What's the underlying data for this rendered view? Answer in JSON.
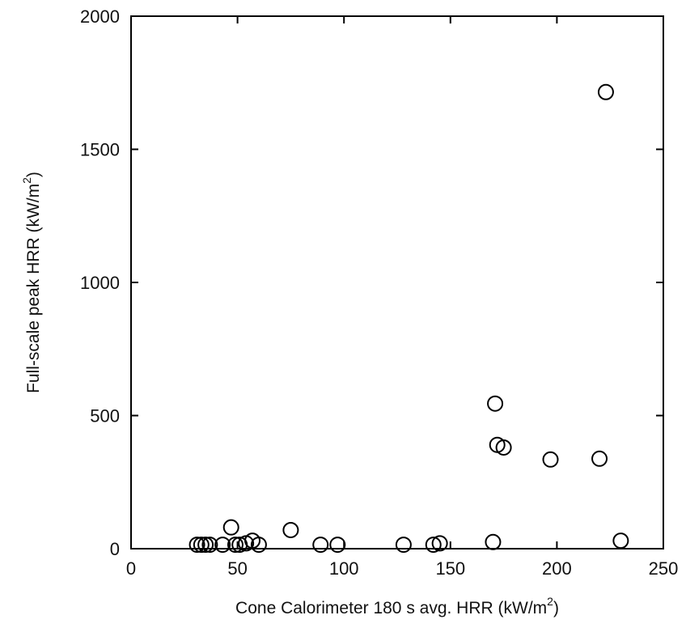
{
  "chart_data": {
    "type": "scatter",
    "xlabel": "Cone Calorimeter 180 s avg. HRR (kW/m",
    "xlabel_sup": "2",
    "xlabel_close": ")",
    "ylabel": "Full-scale peak HRR (kW/m",
    "ylabel_sup": "2",
    "ylabel_close": ")",
    "xlim": [
      0,
      250
    ],
    "ylim": [
      0,
      2000
    ],
    "xticks": [
      0,
      50,
      100,
      150,
      200,
      250
    ],
    "yticks": [
      0,
      500,
      1000,
      1500,
      2000
    ],
    "x_tick_labels": [
      "0",
      "50",
      "100",
      "150",
      "200",
      "250"
    ],
    "y_tick_labels": [
      "0",
      "500",
      "1000",
      "1500",
      "2000"
    ],
    "marker": "open-circle",
    "grid": false,
    "points": [
      {
        "x": 31,
        "y": 15
      },
      {
        "x": 33,
        "y": 15
      },
      {
        "x": 35,
        "y": 15
      },
      {
        "x": 37,
        "y": 15
      },
      {
        "x": 43,
        "y": 15
      },
      {
        "x": 47,
        "y": 80
      },
      {
        "x": 49,
        "y": 15
      },
      {
        "x": 51,
        "y": 15
      },
      {
        "x": 54,
        "y": 20
      },
      {
        "x": 57,
        "y": 30
      },
      {
        "x": 60,
        "y": 15
      },
      {
        "x": 75,
        "y": 70
      },
      {
        "x": 89,
        "y": 15
      },
      {
        "x": 97,
        "y": 15
      },
      {
        "x": 128,
        "y": 15
      },
      {
        "x": 142,
        "y": 15
      },
      {
        "x": 145,
        "y": 20
      },
      {
        "x": 170,
        "y": 25
      },
      {
        "x": 171,
        "y": 545
      },
      {
        "x": 172,
        "y": 390
      },
      {
        "x": 175,
        "y": 380
      },
      {
        "x": 197,
        "y": 335
      },
      {
        "x": 220,
        "y": 338
      },
      {
        "x": 223,
        "y": 1715
      },
      {
        "x": 230,
        "y": 30
      }
    ]
  }
}
